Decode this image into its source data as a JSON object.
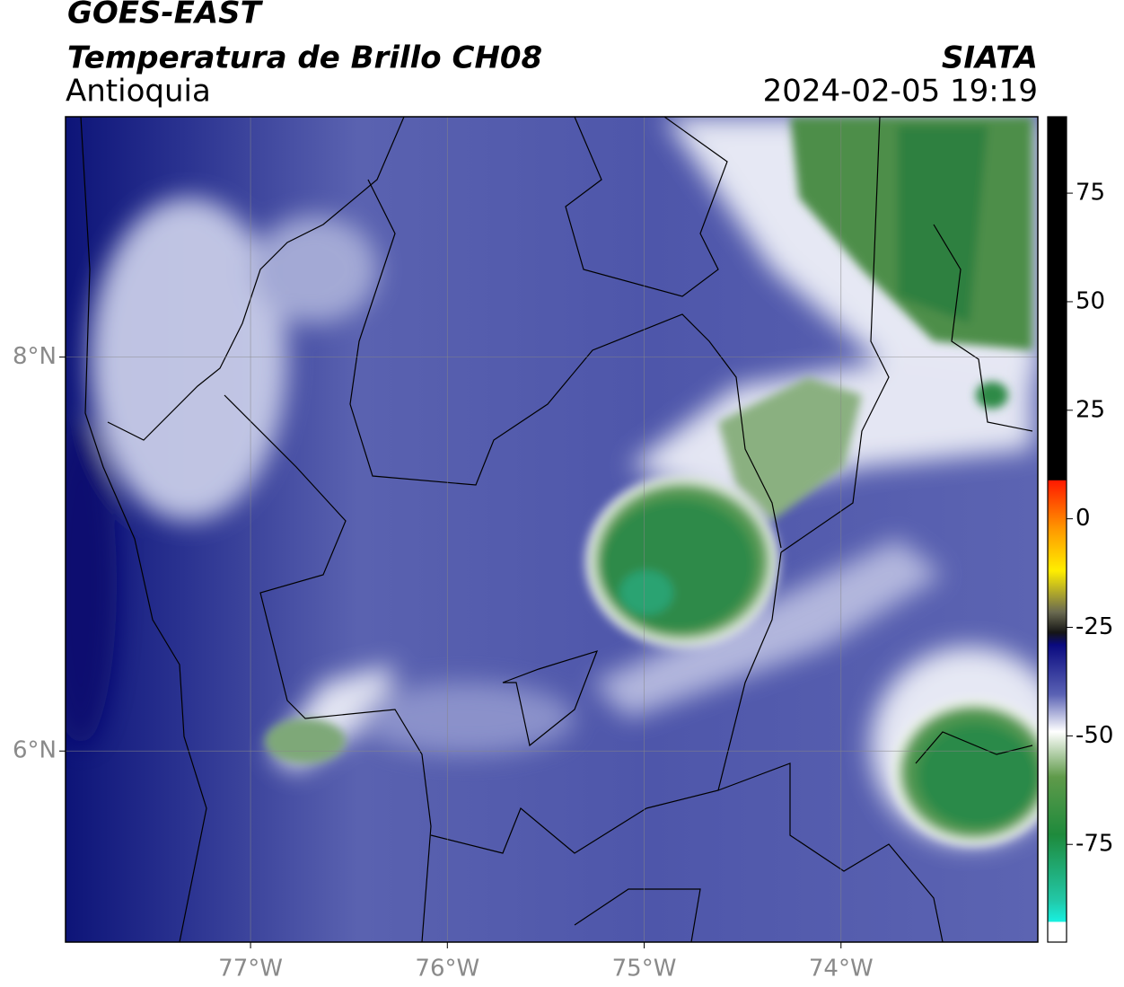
{
  "header": {
    "title": "GOES-EAST",
    "subtitle": "Temperatura de Brillo CH08",
    "region": "Antioquia",
    "source": "SIATA",
    "timestamp": "2024-02-05 19:19"
  },
  "map": {
    "xlim": [
      -77.94,
      -73.0
    ],
    "ylim": [
      5.03,
      9.22
    ],
    "xticks": [
      {
        "value": -77,
        "label": "77°W"
      },
      {
        "value": -76,
        "label": "76°W"
      },
      {
        "value": -75,
        "label": "75°W"
      },
      {
        "value": -74,
        "label": "74°W"
      }
    ],
    "yticks": [
      {
        "value": 8,
        "label": "8°N"
      },
      {
        "value": 6,
        "label": "6°N"
      }
    ],
    "grid": true
  },
  "colorbar": {
    "lim": [
      -97.5,
      92.6
    ],
    "ticks": [
      75,
      50,
      25,
      0,
      -25,
      -50,
      -75
    ]
  }
}
